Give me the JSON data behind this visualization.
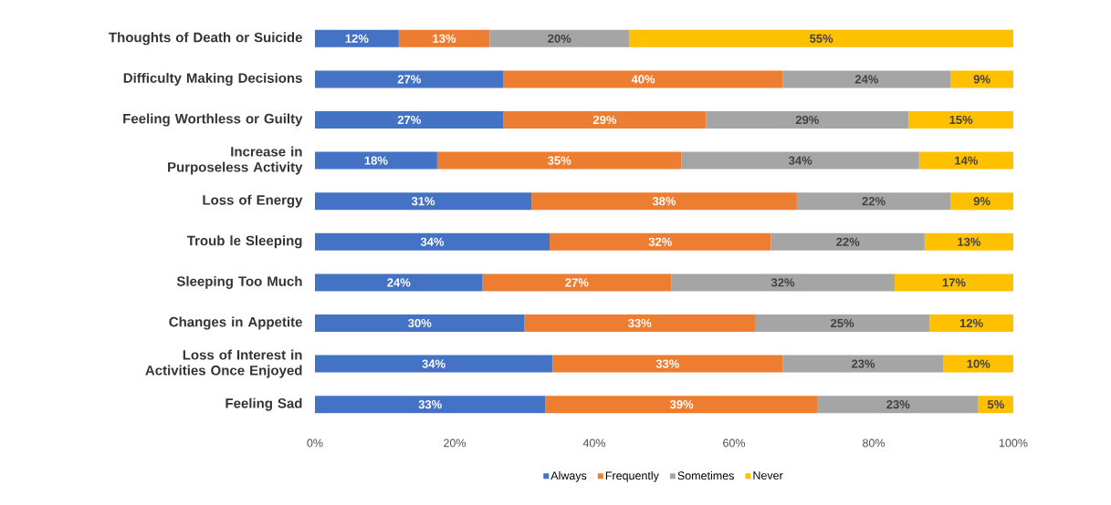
{
  "chart_data": {
    "type": "bar",
    "orientation": "horizontal",
    "stacked": true,
    "categories": [
      "Thoughts of Death or Suicide",
      "Difficulty Making Decisions",
      "Feeling Worthless or Guilty",
      "Increase in Purposeless Activity",
      "Loss of Energy",
      "Troub le Sleeping",
      "Sleeping Too Much",
      "Changes in Appetite",
      "Loss of Interest in Activities Once Enjoyed",
      "Feeling Sad"
    ],
    "series": [
      {
        "name": "Always",
        "color": "#4472c4",
        "values": [
          12,
          27,
          27,
          17.5,
          31,
          33.6,
          24,
          30,
          34,
          33
        ],
        "value_labels": [
          "12%",
          "27%",
          "27%",
          "18%",
          "31%",
          "34%",
          "24%",
          "30%",
          "34%",
          "33%"
        ]
      },
      {
        "name": "Frequently",
        "color": "#ed7d31",
        "values": [
          13,
          40,
          29,
          35,
          38,
          31.7,
          27,
          33,
          33,
          39
        ],
        "value_labels": [
          "13%",
          "40%",
          "29%",
          "35%",
          "38%",
          "32%",
          "27%",
          "33%",
          "33%",
          "39%"
        ]
      },
      {
        "name": "Sometimes",
        "color": "#a5a5a5",
        "values": [
          20,
          24,
          29,
          34,
          22,
          22,
          32,
          25,
          23,
          23
        ],
        "value_labels": [
          "20%",
          "24%",
          "29%",
          "34%",
          "22%",
          "22%",
          "32%",
          "25%",
          "23%",
          "23%"
        ]
      },
      {
        "name": "Never",
        "color": "#ffc000",
        "values": [
          55,
          9,
          15,
          13.5,
          9,
          12.7,
          17,
          12,
          10,
          5
        ],
        "value_labels": [
          "55%",
          "9%",
          "15%",
          "14%",
          "9%",
          "13%",
          "17%",
          "12%",
          "10%",
          "5%"
        ]
      }
    ],
    "xlim": [
      0,
      100
    ],
    "xticks": [
      {
        "value": 0,
        "label": "0%"
      },
      {
        "value": 20,
        "label": "20%"
      },
      {
        "value": 40,
        "label": "40%"
      },
      {
        "value": 60,
        "label": "60%"
      },
      {
        "value": 80,
        "label": "80%"
      },
      {
        "value": 100,
        "label": "100%"
      }
    ],
    "legend": "bottom"
  }
}
